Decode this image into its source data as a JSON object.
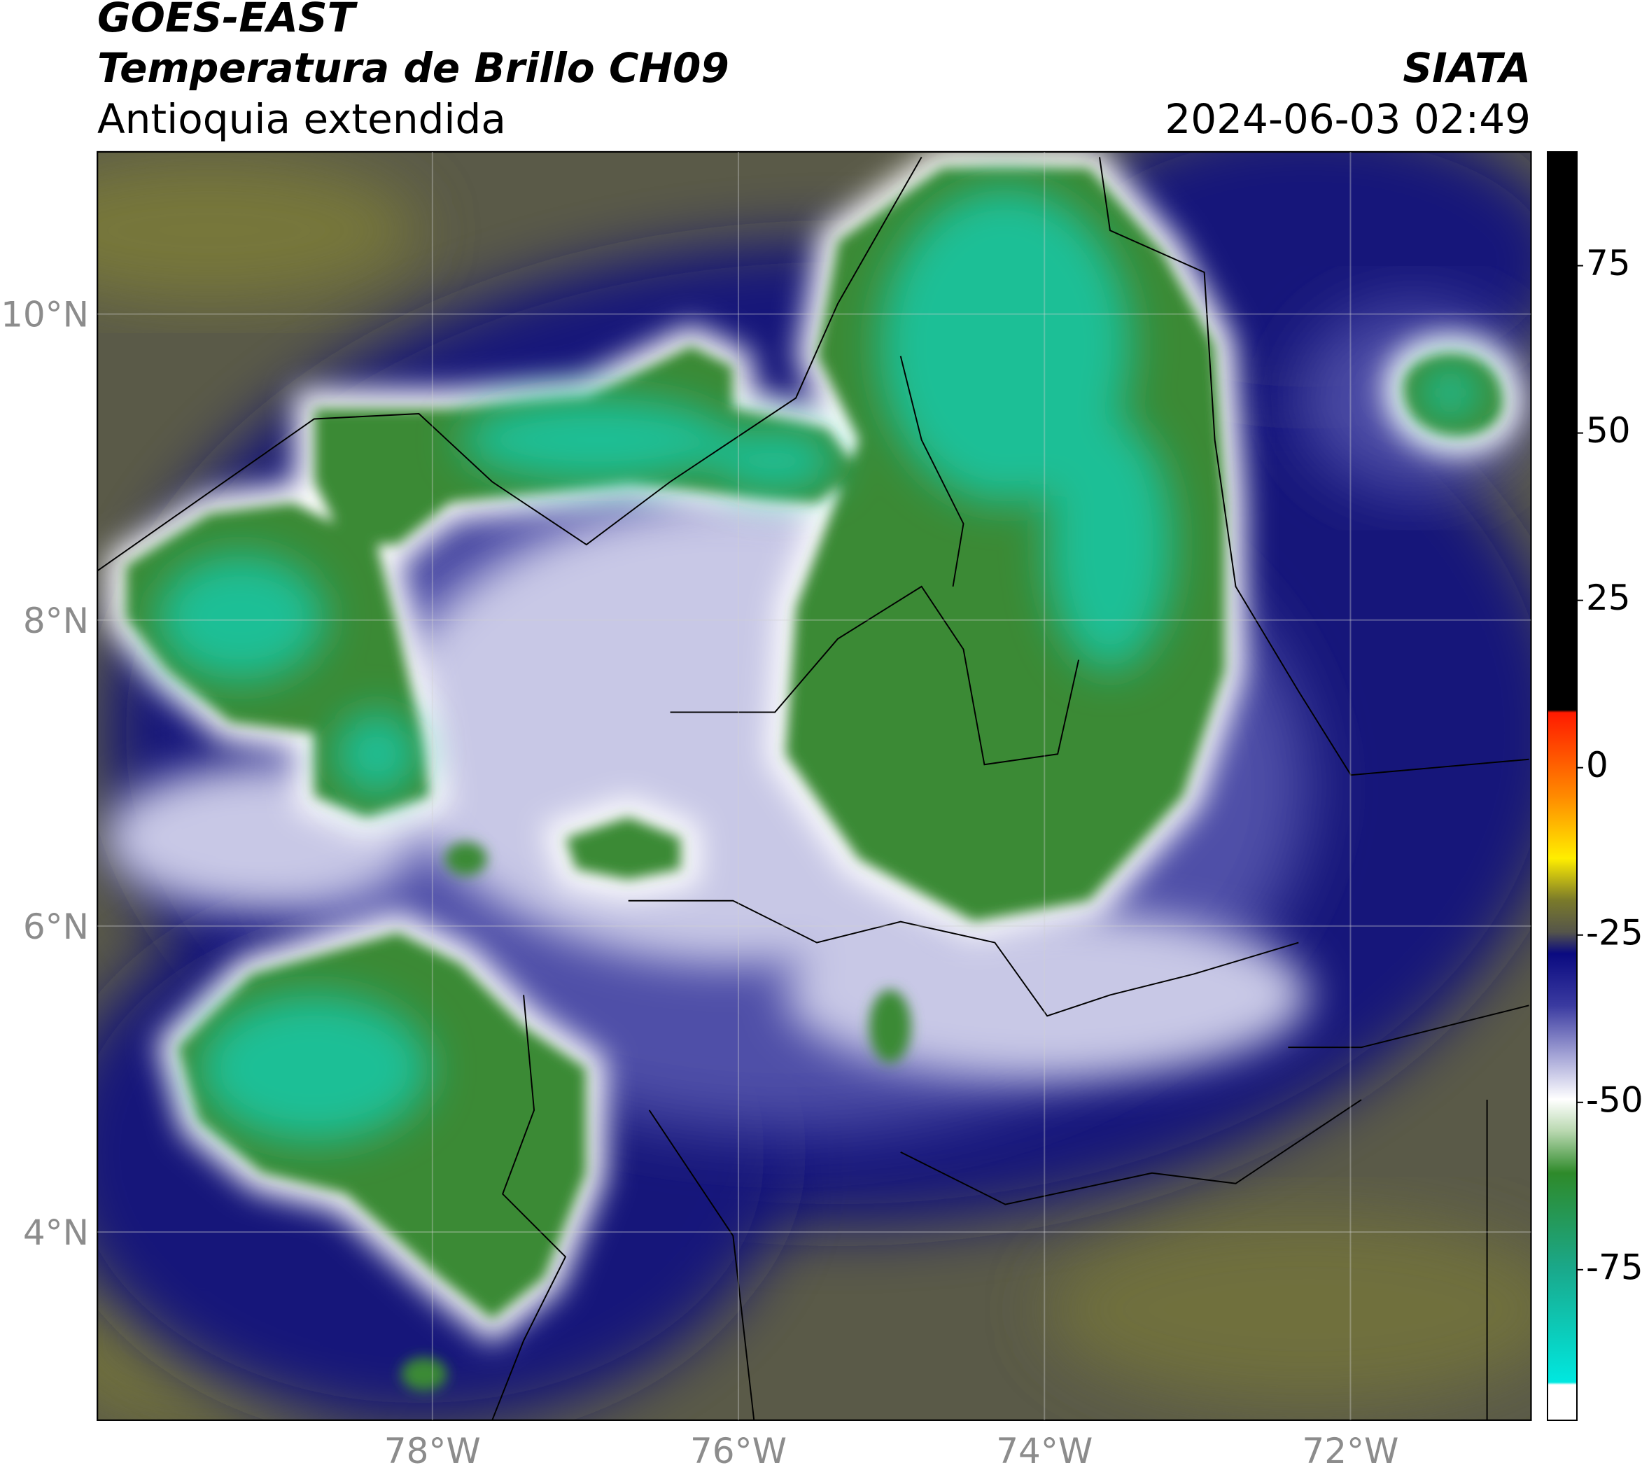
{
  "header": {
    "satellite": "GOES-EAST",
    "product": "Temperatura de Brillo CH09",
    "region": "Antioquia extendida",
    "source": "SIATA",
    "datetime": "2024-06-03 02:49"
  },
  "map": {
    "lon_range": [
      -80.19,
      -70.82
    ],
    "lat_range": [
      2.77,
      11.06
    ],
    "lon_ticks": [
      {
        "value": -78,
        "label": "78°W"
      },
      {
        "value": -76,
        "label": "76°W"
      },
      {
        "value": -74,
        "label": "74°W"
      },
      {
        "value": -72,
        "label": "72°W"
      }
    ],
    "lat_ticks": [
      {
        "value": 4,
        "label": "4°N"
      },
      {
        "value": 6,
        "label": "6°N"
      },
      {
        "value": 8,
        "label": "8°N"
      },
      {
        "value": 10,
        "label": "10°N"
      }
    ]
  },
  "colorbar": {
    "range": [
      -97.5,
      92
    ],
    "ticks": [
      75,
      50,
      25,
      0,
      -25,
      -50,
      -75
    ]
  }
}
